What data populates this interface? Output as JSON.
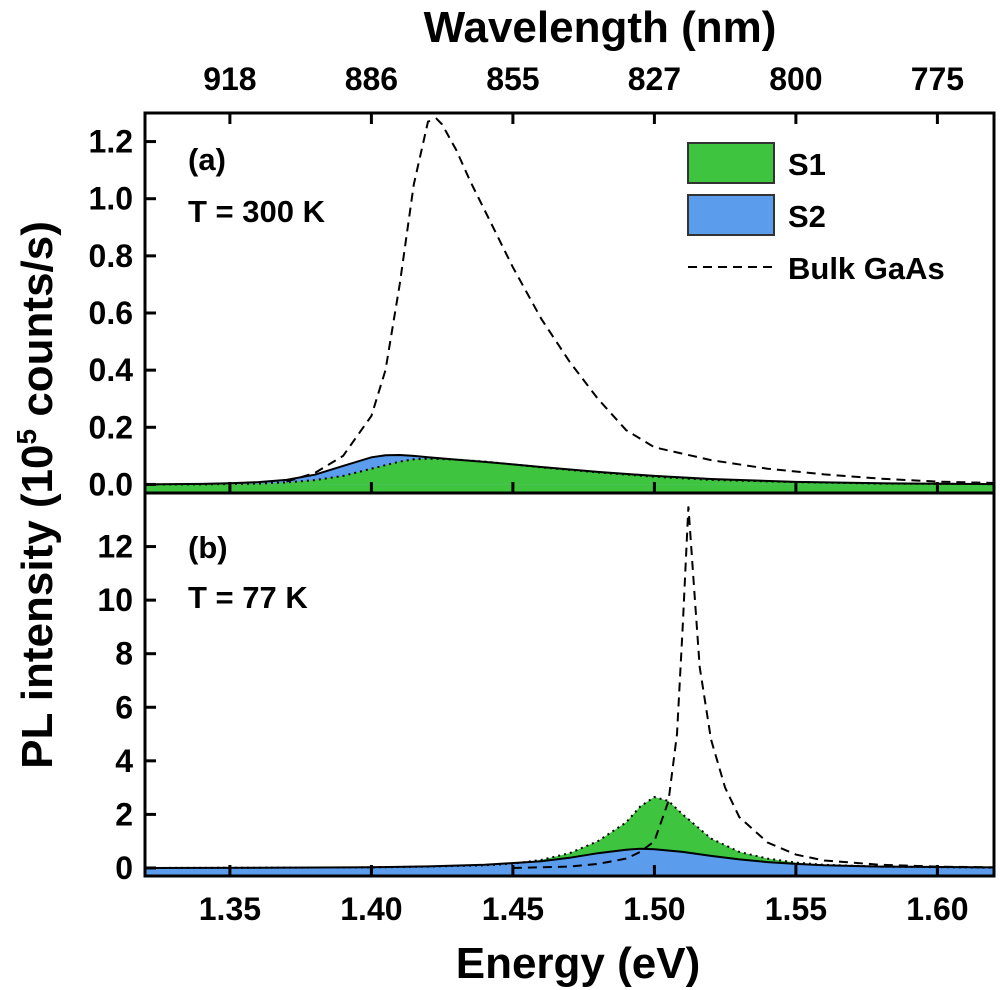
{
  "chart_data": {
    "type": "area",
    "x_axis": {
      "label": "Energy (eV)",
      "range": [
        1.32,
        1.62
      ],
      "ticks": [
        1.35,
        1.4,
        1.45,
        1.5,
        1.55,
        1.6
      ],
      "tick_labels": [
        "1.35",
        "1.40",
        "1.45",
        "1.50",
        "1.55",
        "1.60"
      ]
    },
    "top_axis": {
      "label": "Wavelength (nm)",
      "tick_labels": [
        "918",
        "886",
        "855",
        "827",
        "800",
        "775"
      ]
    },
    "ylabel": "PL intensity (10^5 counts/s)",
    "ylabel_parts": {
      "pre": "PL intensity (10",
      "sup": "5",
      "post": " counts/s)"
    },
    "legend": {
      "position": "top-right",
      "entries": [
        {
          "label": "S1",
          "kind": "fill",
          "color": "#3ec43e"
        },
        {
          "label": "S2",
          "kind": "fill",
          "color": "#5b9ced"
        },
        {
          "label": "Bulk GaAs",
          "kind": "dashed-line",
          "color": "#000000"
        }
      ]
    },
    "panels": [
      {
        "id": "a",
        "label": "(a)",
        "temperature": "T = 300 K",
        "ylim": [
          -0.03,
          1.3
        ],
        "yticks": [
          0.0,
          0.2,
          0.4,
          0.6,
          0.8,
          1.0,
          1.2
        ],
        "ytick_labels": [
          "0.0",
          "0.2",
          "0.4",
          "0.6",
          "0.8",
          "1.0",
          "1.2"
        ],
        "baseline": 0.0,
        "series": [
          {
            "name": "Bulk GaAs",
            "style": "dashed",
            "x": [
              1.37,
              1.38,
              1.39,
              1.4,
              1.405,
              1.41,
              1.415,
              1.42,
              1.423,
              1.425,
              1.43,
              1.435,
              1.44,
              1.45,
              1.46,
              1.47,
              1.48,
              1.49,
              1.5,
              1.52,
              1.54,
              1.56,
              1.58,
              1.6,
              1.62
            ],
            "y": [
              0.01,
              0.04,
              0.1,
              0.24,
              0.4,
              0.7,
              1.05,
              1.27,
              1.28,
              1.26,
              1.17,
              1.06,
              0.96,
              0.76,
              0.58,
              0.43,
              0.3,
              0.19,
              0.13,
              0.085,
              0.055,
              0.035,
              0.02,
              0.01,
              0.005
            ]
          },
          {
            "name": "S1",
            "style": "dotted-edge",
            "x": [
              1.32,
              1.34,
              1.36,
              1.37,
              1.38,
              1.39,
              1.4,
              1.41,
              1.415,
              1.42,
              1.43,
              1.44,
              1.45,
              1.46,
              1.48,
              1.5,
              1.52,
              1.55,
              1.58,
              1.62
            ],
            "y": [
              0.0,
              0.0,
              0.003,
              0.007,
              0.015,
              0.03,
              0.055,
              0.08,
              0.088,
              0.09,
              0.087,
              0.08,
              0.07,
              0.06,
              0.042,
              0.027,
              0.016,
              0.008,
              0.003,
              0.001
            ]
          },
          {
            "name": "S2",
            "style": "solid-edge",
            "x": [
              1.32,
              1.34,
              1.35,
              1.36,
              1.37,
              1.38,
              1.39,
              1.4,
              1.405,
              1.41,
              1.415,
              1.42,
              1.43,
              1.44,
              1.45,
              1.46,
              1.48,
              1.5,
              1.52,
              1.55,
              1.58,
              1.62
            ],
            "y": [
              0.0,
              0.002,
              0.004,
              0.008,
              0.016,
              0.034,
              0.065,
              0.095,
              0.102,
              0.103,
              0.1,
              0.095,
              0.087,
              0.079,
              0.07,
              0.061,
              0.044,
              0.03,
              0.019,
              0.009,
              0.004,
              0.001
            ]
          }
        ]
      },
      {
        "id": "b",
        "label": "(b)",
        "temperature": "T = 77 K",
        "ylim": [
          -0.3,
          14.0
        ],
        "yticks": [
          0,
          2,
          4,
          6,
          8,
          10,
          12
        ],
        "ytick_labels": [
          "0",
          "2",
          "4",
          "6",
          "8",
          "10",
          "12"
        ],
        "baseline": 0.0,
        "series": [
          {
            "name": "Bulk GaAs",
            "style": "dashed",
            "x": [
              1.45,
              1.47,
              1.48,
              1.49,
              1.495,
              1.5,
              1.505,
              1.508,
              1.51,
              1.512,
              1.514,
              1.516,
              1.52,
              1.525,
              1.53,
              1.54,
              1.55,
              1.56,
              1.58,
              1.6,
              1.62
            ],
            "y": [
              0.0,
              0.05,
              0.15,
              0.35,
              0.6,
              1.0,
              2.5,
              5.0,
              9.0,
              13.5,
              10.5,
              7.5,
              4.8,
              3.0,
              1.9,
              0.95,
              0.5,
              0.28,
              0.12,
              0.05,
              0.02
            ]
          },
          {
            "name": "S1",
            "style": "dotted-edge",
            "x": [
              1.32,
              1.4,
              1.42,
              1.44,
              1.45,
              1.46,
              1.47,
              1.48,
              1.49,
              1.495,
              1.5,
              1.505,
              1.51,
              1.52,
              1.53,
              1.54,
              1.55,
              1.56,
              1.58,
              1.62
            ],
            "y": [
              0.0,
              0.02,
              0.05,
              0.1,
              0.16,
              0.3,
              0.55,
              1.0,
              1.7,
              2.3,
              2.65,
              2.5,
              2.0,
              1.1,
              0.6,
              0.35,
              0.2,
              0.12,
              0.05,
              0.01
            ]
          },
          {
            "name": "S2",
            "style": "solid-edge",
            "x": [
              1.32,
              1.36,
              1.4,
              1.42,
              1.44,
              1.46,
              1.47,
              1.48,
              1.49,
              1.495,
              1.5,
              1.51,
              1.52,
              1.53,
              1.54,
              1.55,
              1.56,
              1.58,
              1.62
            ],
            "y": [
              0.0,
              0.01,
              0.03,
              0.06,
              0.12,
              0.25,
              0.38,
              0.55,
              0.68,
              0.72,
              0.7,
              0.6,
              0.45,
              0.32,
              0.22,
              0.15,
              0.1,
              0.05,
              0.02
            ]
          }
        ]
      }
    ]
  }
}
